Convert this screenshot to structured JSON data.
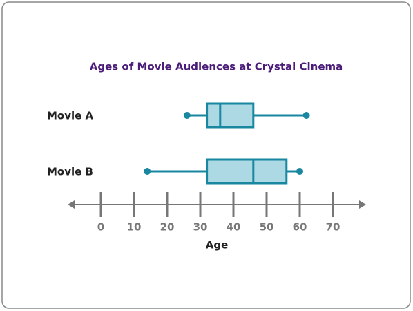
{
  "chart_data": {
    "type": "box",
    "title": "Ages of Movie Audiences at Crystal Cinema",
    "xlabel": "Age",
    "series": [
      {
        "name": "Movie A",
        "min": 26,
        "q1": 32,
        "median": 36,
        "q3": 46,
        "max": 62
      },
      {
        "name": "Movie B",
        "min": 14,
        "q1": 32,
        "median": 46,
        "q3": 56,
        "max": 60
      }
    ],
    "color": "#1a87a0",
    "fill": "#acd9e4",
    "xlim": [
      -10,
      80
    ],
    "xticks": [
      0,
      10,
      20,
      30,
      40,
      50,
      60,
      70
    ]
  }
}
